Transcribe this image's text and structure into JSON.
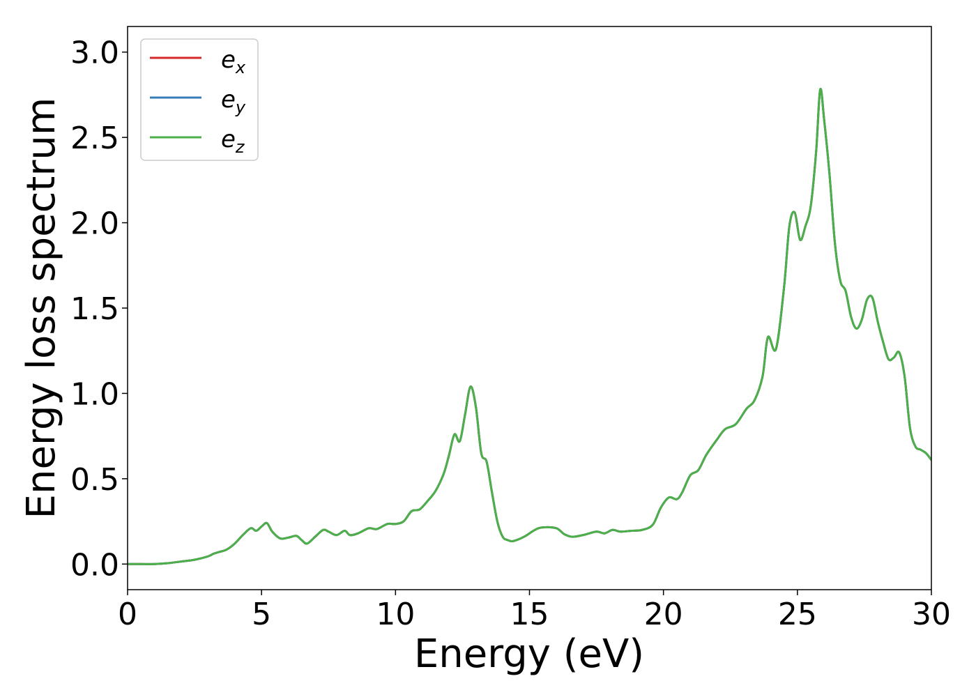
{
  "chart_data": {
    "type": "line",
    "title": "",
    "xlabel": "Energy (eV)",
    "ylabel": "Energy loss spectrum",
    "xlim": [
      0,
      30
    ],
    "ylim": [
      -0.15,
      3.15
    ],
    "xticks": [
      0,
      5,
      10,
      15,
      20,
      25,
      30
    ],
    "yticks": [
      0.0,
      0.5,
      1.0,
      1.5,
      2.0,
      2.5,
      3.0
    ],
    "xtick_labels": [
      "0",
      "5",
      "10",
      "15",
      "20",
      "25",
      "30"
    ],
    "ytick_labels": [
      "0.0",
      "0.5",
      "1.0",
      "1.5",
      "2.0",
      "2.5",
      "3.0"
    ],
    "grid": false,
    "legend_position": "top-left",
    "series": [
      {
        "name_base": "e",
        "name_sub": "x",
        "color": "#d62728"
      },
      {
        "name_base": "e",
        "name_sub": "y",
        "color": "#377eb8"
      },
      {
        "name_base": "e",
        "name_sub": "z",
        "color": "#4daf4a"
      }
    ],
    "x": [
      0.0,
      0.5,
      1.0,
      1.5,
      2.0,
      2.5,
      3.0,
      3.2,
      3.4,
      3.7,
      4.0,
      4.3,
      4.6,
      4.8,
      5.0,
      5.2,
      5.4,
      5.7,
      6.0,
      6.3,
      6.5,
      6.7,
      7.0,
      7.3,
      7.5,
      7.8,
      8.1,
      8.3,
      8.6,
      9.0,
      9.3,
      9.7,
      10.0,
      10.3,
      10.6,
      10.9,
      11.2,
      11.5,
      11.8,
      12.0,
      12.2,
      12.4,
      12.6,
      12.8,
      13.0,
      13.2,
      13.4,
      13.6,
      13.8,
      14.0,
      14.2,
      14.4,
      14.8,
      15.2,
      15.5,
      16.0,
      16.3,
      16.6,
      17.0,
      17.5,
      17.8,
      18.1,
      18.4,
      18.8,
      19.2,
      19.6,
      19.9,
      20.2,
      20.5,
      20.7,
      21.0,
      21.3,
      21.6,
      22.0,
      22.3,
      22.7,
      23.1,
      23.4,
      23.7,
      23.9,
      24.2,
      24.5,
      24.7,
      24.9,
      25.1,
      25.3,
      25.5,
      25.7,
      25.85,
      26.0,
      26.2,
      26.4,
      26.6,
      26.8,
      27.0,
      27.2,
      27.4,
      27.6,
      27.8,
      28.0,
      28.2,
      28.4,
      28.6,
      28.8,
      29.0,
      29.2,
      29.4,
      29.6,
      29.8,
      30.0
    ],
    "y": [
      0.0,
      0.0,
      0.0,
      0.005,
      0.015,
      0.025,
      0.045,
      0.06,
      0.07,
      0.085,
      0.12,
      0.17,
      0.21,
      0.195,
      0.22,
      0.24,
      0.19,
      0.15,
      0.155,
      0.165,
      0.14,
      0.12,
      0.16,
      0.2,
      0.19,
      0.17,
      0.195,
      0.17,
      0.18,
      0.21,
      0.205,
      0.235,
      0.235,
      0.25,
      0.31,
      0.32,
      0.37,
      0.43,
      0.53,
      0.64,
      0.76,
      0.72,
      0.88,
      1.04,
      0.92,
      0.65,
      0.6,
      0.42,
      0.25,
      0.16,
      0.14,
      0.135,
      0.16,
      0.2,
      0.215,
      0.21,
      0.175,
      0.16,
      0.17,
      0.19,
      0.18,
      0.2,
      0.19,
      0.195,
      0.2,
      0.23,
      0.33,
      0.39,
      0.38,
      0.42,
      0.52,
      0.55,
      0.64,
      0.73,
      0.79,
      0.82,
      0.91,
      0.96,
      1.1,
      1.33,
      1.26,
      1.62,
      1.98,
      2.06,
      1.9,
      1.98,
      2.1,
      2.42,
      2.78,
      2.6,
      2.28,
      1.88,
      1.66,
      1.6,
      1.45,
      1.38,
      1.43,
      1.55,
      1.56,
      1.42,
      1.3,
      1.2,
      1.21,
      1.24,
      1.1,
      0.8,
      0.69,
      0.67,
      0.65,
      0.61
    ]
  }
}
